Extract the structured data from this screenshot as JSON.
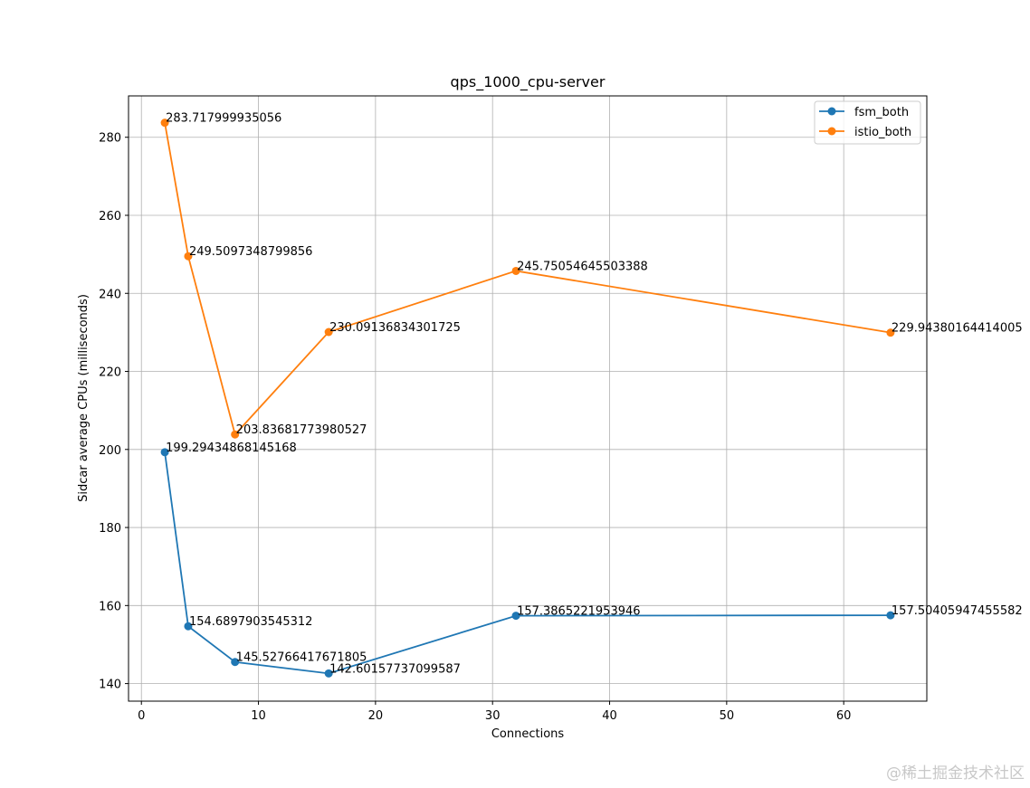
{
  "chart_data": {
    "type": "line",
    "title": "qps_1000_cpu-server",
    "xlabel": "Connections",
    "ylabel": "Sidcar average CPUs (milliseconds)",
    "xlim": [
      -1.1,
      67.1
    ],
    "ylim": [
      135.5,
      290.6
    ],
    "xticks": [
      0,
      10,
      20,
      30,
      40,
      50,
      60
    ],
    "yticks": [
      140,
      160,
      180,
      200,
      220,
      240,
      260,
      280
    ],
    "grid": true,
    "legend_position": "top-right",
    "series": [
      {
        "name": "fsm_both",
        "color": "#1f77b4",
        "x": [
          2,
          4,
          8,
          16,
          32,
          64
        ],
        "y": [
          199.29434868145168,
          154.6897903545312,
          145.52766417671805,
          142.60157737099587,
          157.3865221953946,
          157.50405947455582
        ],
        "labels": [
          "199.29434868145168",
          "154.6897903545312",
          "145.52766417671805",
          "142.60157737099587",
          "157.3865221953946",
          "157.50405947455582"
        ]
      },
      {
        "name": "istio_both",
        "color": "#ff7f0e",
        "x": [
          2,
          4,
          8,
          16,
          32,
          64
        ],
        "y": [
          283.717999935056,
          249.5097348799856,
          203.83681773980527,
          230.09136834301725,
          245.75054645503388,
          229.94380164414005
        ],
        "labels": [
          "283.717999935056",
          "249.5097348799856",
          "203.83681773980527",
          "230.09136834301725",
          "245.75054645503388",
          "229.94380164414005"
        ]
      }
    ]
  },
  "watermark": "@稀土掘金技术社区"
}
